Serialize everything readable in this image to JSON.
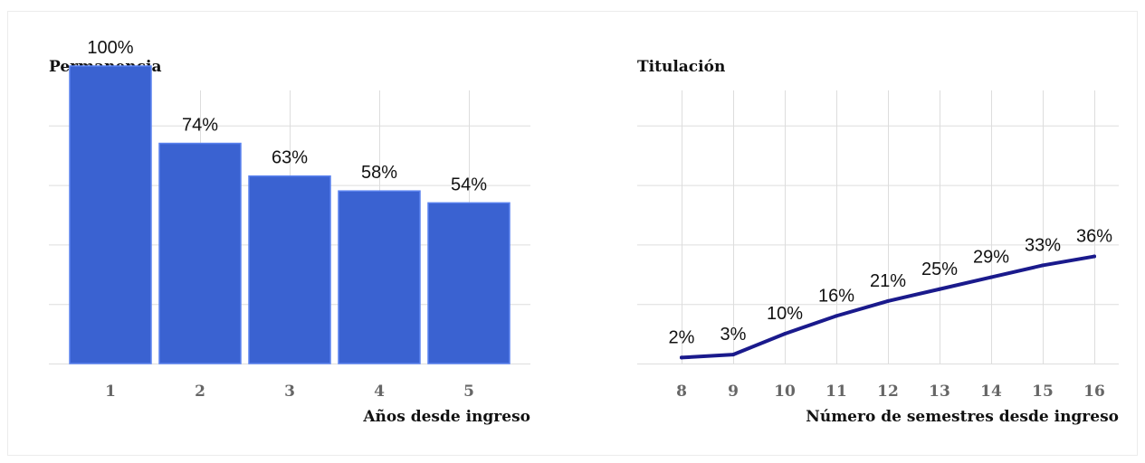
{
  "chart_data": [
    {
      "type": "bar",
      "title": "Permanencia",
      "xlabel": "Años desde ingreso",
      "ylabel": "",
      "categories": [
        "1",
        "2",
        "3",
        "4",
        "5"
      ],
      "values": [
        100,
        74,
        63,
        58,
        54
      ],
      "value_labels": [
        "100%",
        "74%",
        "63%",
        "58%",
        "54%"
      ],
      "ylim": [
        0,
        100
      ],
      "grid": true,
      "color": "#3a62d1"
    },
    {
      "type": "line",
      "title": "Titulación",
      "xlabel": "Número de semestres desde ingreso",
      "ylabel": "",
      "x": [
        "8",
        "9",
        "10",
        "11",
        "12",
        "13",
        "14",
        "15",
        "16"
      ],
      "values": [
        2,
        3,
        10,
        16,
        21,
        25,
        29,
        33,
        36
      ],
      "value_labels": [
        "2%",
        "3%",
        "10%",
        "16%",
        "21%",
        "25%",
        "29%",
        "33%",
        "36%"
      ],
      "ylim": [
        0,
        100
      ],
      "grid": true,
      "color": "#1a1a8c"
    }
  ]
}
